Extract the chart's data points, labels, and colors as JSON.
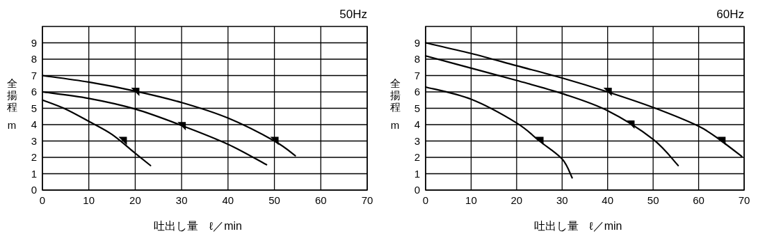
{
  "chart_data": [
    {
      "type": "line",
      "title": "50Hz",
      "xlabel": "吐出し量　ℓ／min",
      "ylabel": "全揚程m",
      "xlim": [
        0,
        70
      ],
      "ylim": [
        0,
        10
      ],
      "xticks": [
        0,
        10,
        20,
        30,
        40,
        50,
        60,
        70
      ],
      "yticks": [
        0,
        1,
        2,
        3,
        4,
        5,
        6,
        7,
        8,
        9
      ],
      "grid": true,
      "series": [
        {
          "color": "#000000",
          "x": [
            0,
            10,
            20,
            30,
            40,
            50,
            54.5
          ],
          "values": [
            7,
            6.6,
            6.05,
            5.35,
            4.4,
            3.0,
            2.1
          ]
        },
        {
          "color": "#000000",
          "x": [
            0,
            10,
            20,
            30,
            40,
            48.3
          ],
          "values": [
            6,
            5.6,
            4.95,
            3.95,
            2.8,
            1.55
          ]
        },
        {
          "color": "#000000",
          "x": [
            0,
            5,
            10,
            15,
            20,
            23.3
          ],
          "values": [
            5.5,
            4.95,
            4.2,
            3.4,
            2.25,
            1.5
          ]
        },
        {
          "type": "scatter",
          "marker": "triangle",
          "color": "#000000",
          "x": [
            20,
            30,
            17.3,
            50
          ],
          "values": [
            6.0,
            3.9,
            3.0,
            3.0
          ]
        }
      ]
    },
    {
      "type": "line",
      "title": "60Hz",
      "xlabel": "吐出し量　ℓ／min",
      "ylabel": "全揚程m",
      "xlim": [
        0,
        70
      ],
      "ylim": [
        0,
        10
      ],
      "xticks": [
        0,
        10,
        20,
        30,
        40,
        50,
        60,
        70
      ],
      "yticks": [
        0,
        1,
        2,
        3,
        4,
        5,
        6,
        7,
        8,
        9
      ],
      "grid": true,
      "series": [
        {
          "color": "#000000",
          "x": [
            0,
            10,
            20,
            30,
            40,
            50,
            60,
            65,
            69.5
          ],
          "values": [
            9,
            8.35,
            7.6,
            6.85,
            6.0,
            5.05,
            3.9,
            3.0,
            2.05
          ]
        },
        {
          "color": "#000000",
          "x": [
            0,
            10,
            20,
            30,
            40,
            50,
            55.5
          ],
          "values": [
            8.2,
            7.45,
            6.7,
            5.9,
            4.85,
            3.1,
            1.5
          ]
        },
        {
          "color": "#000000",
          "x": [
            0,
            10,
            20,
            25,
            30,
            32.2
          ],
          "values": [
            6.3,
            5.55,
            4.1,
            3.0,
            1.9,
            0.75
          ]
        },
        {
          "type": "scatter",
          "marker": "triangle",
          "color": "#000000",
          "x": [
            40,
            45,
            25,
            65
          ],
          "values": [
            6.0,
            4.0,
            3.0,
            3.0
          ]
        }
      ]
    }
  ]
}
